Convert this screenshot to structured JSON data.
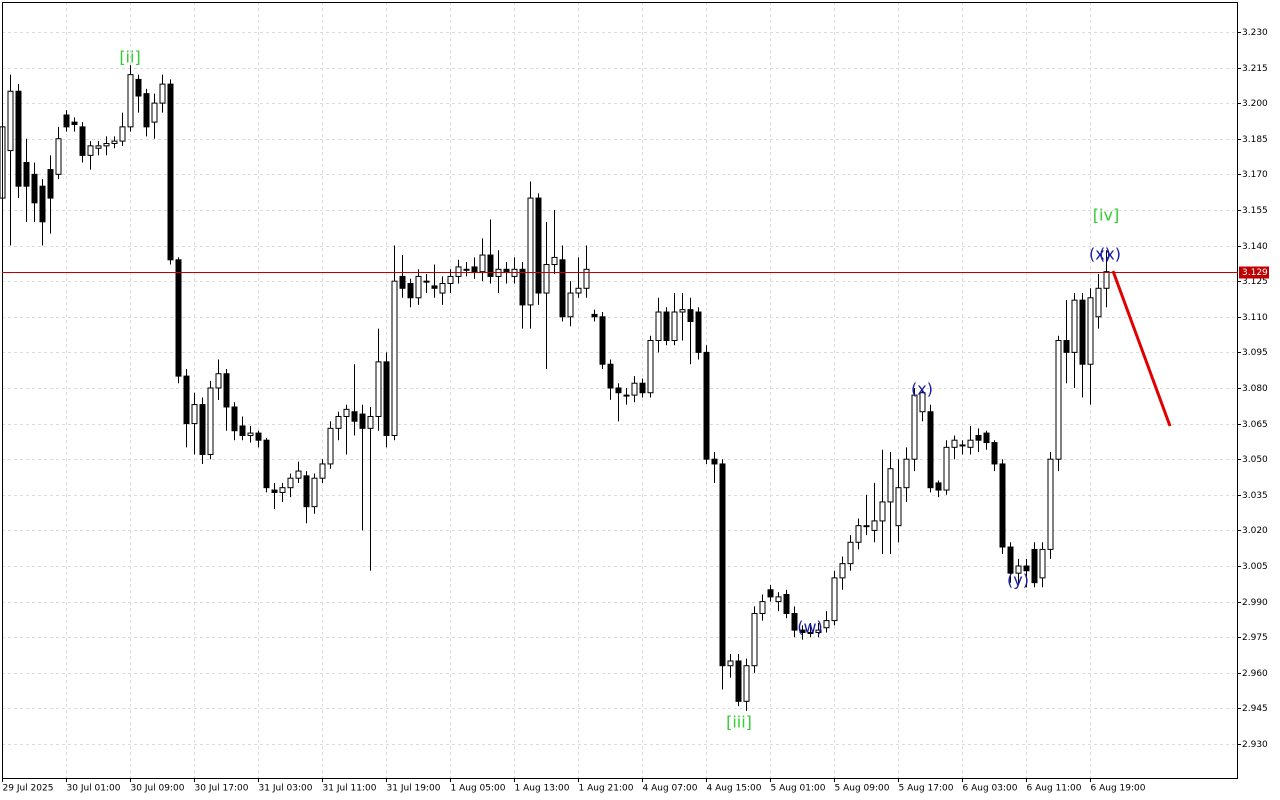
{
  "chart_data": {
    "type": "candlestick",
    "categories": [
      "29 Jul 2025",
      null,
      null,
      null,
      null,
      null,
      null,
      null,
      "30 Jul 01:00",
      null,
      null,
      null,
      null,
      null,
      null,
      null,
      "30 Jul 09:00",
      null,
      null,
      null,
      null,
      null,
      null,
      null,
      "30 Jul 17:00",
      null,
      null,
      null,
      null,
      null,
      null,
      null,
      "31 Jul 03:00",
      null,
      null,
      null,
      null,
      null,
      null,
      null,
      "31 Jul 11:00",
      null,
      null,
      null,
      null,
      null,
      null,
      null,
      "31 Jul 19:00",
      null,
      null,
      null,
      null,
      null,
      null,
      null,
      "1 Aug 05:00",
      null,
      null,
      null,
      null,
      null,
      null,
      null,
      "1 Aug 13:00",
      null,
      null,
      null,
      null,
      null,
      null,
      null,
      "1 Aug 21:00",
      null,
      null,
      null,
      null,
      null,
      null,
      null,
      "4 Aug 07:00",
      null,
      null,
      null,
      null,
      null,
      null,
      null,
      "4 Aug 15:00",
      null,
      null,
      null,
      null,
      null,
      null,
      null,
      "5 Aug 01:00",
      null,
      null,
      null,
      null,
      null,
      null,
      null,
      "5 Aug 09:00",
      null,
      null,
      null,
      null,
      null,
      null,
      null,
      "5 Aug 17:00",
      null,
      null,
      null,
      null,
      null,
      null,
      null,
      "6 Aug 03:00",
      null,
      null,
      null,
      null,
      null,
      null,
      null,
      "6 Aug 11:00",
      null,
      null,
      null,
      null,
      null,
      null,
      null,
      "6 Aug 19:00",
      null,
      null
    ],
    "ohlc": [
      [
        3.16,
        3.212,
        3.135,
        3.19
      ],
      [
        3.18,
        3.212,
        3.14,
        3.205
      ],
      [
        3.205,
        3.208,
        3.16,
        3.165
      ],
      [
        3.175,
        3.185,
        3.15,
        3.165
      ],
      [
        3.17,
        3.175,
        3.15,
        3.158
      ],
      [
        3.165,
        3.168,
        3.14,
        3.15
      ],
      [
        3.172,
        3.178,
        3.145,
        3.16
      ],
      [
        3.17,
        3.19,
        3.168,
        3.185
      ],
      [
        3.195,
        3.197,
        3.188,
        3.19
      ],
      [
        3.192,
        3.194,
        3.188,
        3.191
      ],
      [
        3.19,
        3.192,
        3.175,
        3.178
      ],
      [
        3.178,
        3.184,
        3.172,
        3.182
      ],
      [
        3.181,
        3.184,
        3.178,
        3.182
      ],
      [
        3.182,
        3.186,
        3.178,
        3.183
      ],
      [
        3.183,
        3.186,
        3.181,
        3.184
      ],
      [
        3.184,
        3.196,
        3.182,
        3.19
      ],
      [
        3.19,
        3.216,
        3.188,
        3.212
      ],
      [
        3.21,
        3.212,
        3.196,
        3.203
      ],
      [
        3.204,
        3.206,
        3.186,
        3.19
      ],
      [
        3.192,
        3.204,
        3.185,
        3.2
      ],
      [
        3.2,
        3.212,
        3.196,
        3.208
      ],
      [
        3.208,
        3.21,
        3.132,
        3.134
      ],
      [
        3.134,
        3.135,
        3.082,
        3.085
      ],
      [
        3.085,
        3.088,
        3.055,
        3.065
      ],
      [
        3.065,
        3.078,
        3.052,
        3.073
      ],
      [
        3.073,
        3.076,
        3.048,
        3.052
      ],
      [
        3.052,
        3.083,
        3.05,
        3.08
      ],
      [
        3.08,
        3.092,
        3.075,
        3.086
      ],
      [
        3.086,
        3.088,
        3.062,
        3.072
      ],
      [
        3.072,
        3.074,
        3.058,
        3.062
      ],
      [
        3.064,
        3.068,
        3.058,
        3.06
      ],
      [
        3.06,
        3.064,
        3.057,
        3.061
      ],
      [
        3.061,
        3.062,
        3.055,
        3.058
      ],
      [
        3.058,
        3.059,
        3.036,
        3.038
      ],
      [
        3.037,
        3.04,
        3.029,
        3.036
      ],
      [
        3.036,
        3.04,
        3.032,
        3.038
      ],
      [
        3.038,
        3.044,
        3.034,
        3.042
      ],
      [
        3.042,
        3.049,
        3.04,
        3.045
      ],
      [
        3.043,
        3.045,
        3.023,
        3.03
      ],
      [
        3.03,
        3.044,
        3.027,
        3.042
      ],
      [
        3.042,
        3.05,
        3.04,
        3.048
      ],
      [
        3.048,
        3.066,
        3.046,
        3.063
      ],
      [
        3.063,
        3.07,
        3.058,
        3.068
      ],
      [
        3.068,
        3.073,
        3.052,
        3.071
      ],
      [
        3.07,
        3.09,
        3.06,
        3.066
      ],
      [
        3.069,
        3.073,
        3.02,
        3.063
      ],
      [
        3.063,
        3.072,
        3.003,
        3.068
      ],
      [
        3.068,
        3.105,
        3.062,
        3.091
      ],
      [
        3.091,
        3.095,
        3.055,
        3.06
      ],
      [
        3.06,
        3.14,
        3.058,
        3.125
      ],
      [
        3.127,
        3.136,
        3.118,
        3.122
      ],
      [
        3.124,
        3.126,
        3.114,
        3.118
      ],
      [
        3.118,
        3.13,
        3.115,
        3.127
      ],
      [
        3.125,
        3.128,
        3.12,
        3.125
      ],
      [
        3.123,
        3.132,
        3.118,
        3.122
      ],
      [
        3.12,
        3.127,
        3.115,
        3.124
      ],
      [
        3.124,
        3.13,
        3.12,
        3.127
      ],
      [
        3.127,
        3.134,
        3.124,
        3.131
      ],
      [
        3.13,
        3.133,
        3.127,
        3.13
      ],
      [
        3.131,
        3.135,
        3.126,
        3.129
      ],
      [
        3.129,
        3.143,
        3.125,
        3.136
      ],
      [
        3.136,
        3.151,
        3.124,
        3.127
      ],
      [
        3.127,
        3.138,
        3.12,
        3.13
      ],
      [
        3.13,
        3.133,
        3.124,
        3.129
      ],
      [
        3.127,
        3.135,
        3.124,
        3.13
      ],
      [
        3.13,
        3.133,
        3.105,
        3.115
      ],
      [
        3.115,
        3.167,
        3.105,
        3.16
      ],
      [
        3.16,
        3.162,
        3.115,
        3.12
      ],
      [
        3.12,
        3.15,
        3.088,
        3.132
      ],
      [
        3.132,
        3.155,
        3.128,
        3.135
      ],
      [
        3.134,
        3.14,
        3.108,
        3.11
      ],
      [
        3.11,
        3.125,
        3.106,
        3.12
      ],
      [
        3.12,
        3.135,
        3.118,
        3.122
      ],
      [
        3.122,
        3.14,
        3.118,
        3.13
      ],
      [
        3.111,
        3.113,
        3.108,
        3.11
      ],
      [
        3.11,
        3.112,
        3.088,
        3.09
      ],
      [
        3.09,
        3.092,
        3.075,
        3.08
      ],
      [
        3.08,
        3.082,
        3.066,
        3.078
      ],
      [
        3.077,
        3.08,
        3.073,
        3.077
      ],
      [
        3.077,
        3.085,
        3.074,
        3.082
      ],
      [
        3.082,
        3.084,
        3.076,
        3.078
      ],
      [
        3.078,
        3.102,
        3.076,
        3.1
      ],
      [
        3.1,
        3.118,
        3.095,
        3.112
      ],
      [
        3.112,
        3.114,
        3.098,
        3.1
      ],
      [
        3.1,
        3.12,
        3.098,
        3.112
      ],
      [
        3.112,
        3.12,
        3.1,
        3.113
      ],
      [
        3.113,
        3.118,
        3.09,
        3.108
      ],
      [
        3.112,
        3.114,
        3.092,
        3.095
      ],
      [
        3.095,
        3.098,
        3.048,
        3.05
      ],
      [
        3.05,
        3.053,
        3.04,
        3.048
      ],
      [
        3.048,
        3.05,
        2.953,
        2.963
      ],
      [
        2.963,
        2.968,
        2.958,
        2.965
      ],
      [
        2.965,
        2.968,
        2.946,
        2.948
      ],
      [
        2.948,
        2.966,
        2.944,
        2.963
      ],
      [
        2.963,
        2.988,
        2.96,
        2.985
      ],
      [
        2.985,
        2.993,
        2.982,
        2.99
      ],
      [
        2.995,
        2.997,
        2.99,
        2.992
      ],
      [
        2.99,
        2.994,
        2.986,
        2.992
      ],
      [
        2.993,
        2.995,
        2.983,
        2.985
      ],
      [
        2.985,
        2.988,
        2.975,
        2.978
      ],
      [
        2.978,
        2.98,
        2.974,
        2.977
      ],
      [
        2.977,
        2.981,
        2.975,
        2.977
      ],
      [
        2.977,
        2.981,
        2.975,
        2.978
      ],
      [
        2.979,
        2.986,
        2.977,
        2.982
      ],
      [
        2.982,
        3.003,
        2.98,
        3.0
      ],
      [
        3.0,
        3.009,
        2.995,
        3.006
      ],
      [
        3.006,
        3.018,
        3.003,
        3.015
      ],
      [
        3.015,
        3.025,
        3.012,
        3.022
      ],
      [
        3.022,
        3.035,
        3.018,
        3.022
      ],
      [
        3.02,
        3.04,
        3.015,
        3.024
      ],
      [
        3.024,
        3.054,
        3.01,
        3.032
      ],
      [
        3.032,
        3.053,
        3.01,
        3.046
      ],
      [
        3.022,
        3.05,
        3.015,
        3.038
      ],
      [
        3.038,
        3.055,
        3.032,
        3.05
      ],
      [
        3.05,
        3.08,
        3.045,
        3.077
      ],
      [
        3.07,
        3.079,
        3.066,
        3.078
      ],
      [
        3.07,
        3.073,
        3.036,
        3.038
      ],
      [
        3.04,
        3.041,
        3.034,
        3.037
      ],
      [
        3.037,
        3.058,
        3.035,
        3.055
      ],
      [
        3.055,
        3.06,
        3.05,
        3.058
      ],
      [
        3.056,
        3.058,
        3.052,
        3.056
      ],
      [
        3.055,
        3.064,
        3.052,
        3.058
      ],
      [
        3.06,
        3.063,
        3.053,
        3.058
      ],
      [
        3.061,
        3.062,
        3.054,
        3.057
      ],
      [
        3.057,
        3.058,
        3.045,
        3.048
      ],
      [
        3.048,
        3.05,
        3.01,
        3.013
      ],
      [
        3.013,
        3.015,
        2.998,
        3.002
      ],
      [
        3.002,
        3.008,
        2.997,
        3.005
      ],
      [
        3.005,
        3.008,
        2.996,
        3.003
      ],
      [
        3.012,
        3.015,
        2.996,
        2.998
      ],
      [
        3.0,
        3.015,
        2.996,
        3.012
      ],
      [
        3.012,
        3.053,
        3.008,
        3.05
      ],
      [
        3.05,
        3.102,
        3.045,
        3.1
      ],
      [
        3.1,
        3.117,
        3.082,
        3.095
      ],
      [
        3.095,
        3.12,
        3.08,
        3.117
      ],
      [
        3.117,
        3.12,
        3.076,
        3.09
      ],
      [
        3.09,
        3.122,
        3.073,
        3.118
      ],
      [
        3.11,
        3.128,
        3.105,
        3.122
      ],
      [
        3.122,
        3.138,
        3.114,
        3.129
      ]
    ],
    "ylim": [
      2.9157,
      3.2426
    ],
    "yticks": [
      {
        "value": 3.23,
        "label": "3.230"
      },
      3.215,
      {
        "value": 3.2,
        "label": "3.200"
      },
      3.185,
      {
        "value": 3.17,
        "label": "3.170"
      },
      3.155,
      {
        "value": 3.14,
        "label": "3.140"
      },
      3.125,
      {
        "value": 3.11,
        "label": "3.110"
      },
      3.095,
      {
        "value": 3.08,
        "label": "3.080"
      },
      3.065,
      {
        "value": 3.05,
        "label": "3.050"
      },
      3.035,
      {
        "value": 3.02,
        "label": "3.020"
      },
      3.005,
      {
        "value": 2.99,
        "label": "2.990"
      },
      2.975,
      {
        "value": 2.96,
        "label": "2.960"
      },
      2.945,
      {
        "value": 2.93,
        "label": "2.930"
      }
    ],
    "grid": true,
    "current_price": 3.129,
    "up_color": "#ffffff",
    "down_color": "#000000",
    "price_line_color": "#c00000",
    "annotations": [
      {
        "text": "[ii]",
        "color": "#33cc33"
      },
      {
        "text": "[iii]",
        "color": "#33cc33"
      },
      {
        "text": "[iv]",
        "color": "#33cc33"
      },
      {
        "text": "(w)",
        "color": "#1a1aa6"
      },
      {
        "text": "(x)",
        "color": "#1a1aa6"
      },
      {
        "text": "(y)",
        "color": "#1a1aa6"
      },
      {
        "text": "(x)",
        "color": "#1a1aa6"
      },
      {
        "text": "(x)",
        "color": "#1a1aa6"
      }
    ]
  }
}
